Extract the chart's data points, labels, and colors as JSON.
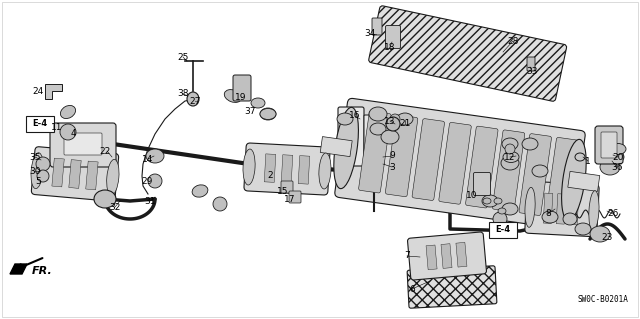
{
  "background_color": "#ffffff",
  "diagram_code": "SW0C-B0201A",
  "fig_width": 6.4,
  "fig_height": 3.19,
  "dpi": 100,
  "font_size": 6.5,
  "line_color": "#1a1a1a",
  "gray_fill": "#d8d8d8",
  "dark_fill": "#555555",
  "white_fill": "#ffffff"
}
